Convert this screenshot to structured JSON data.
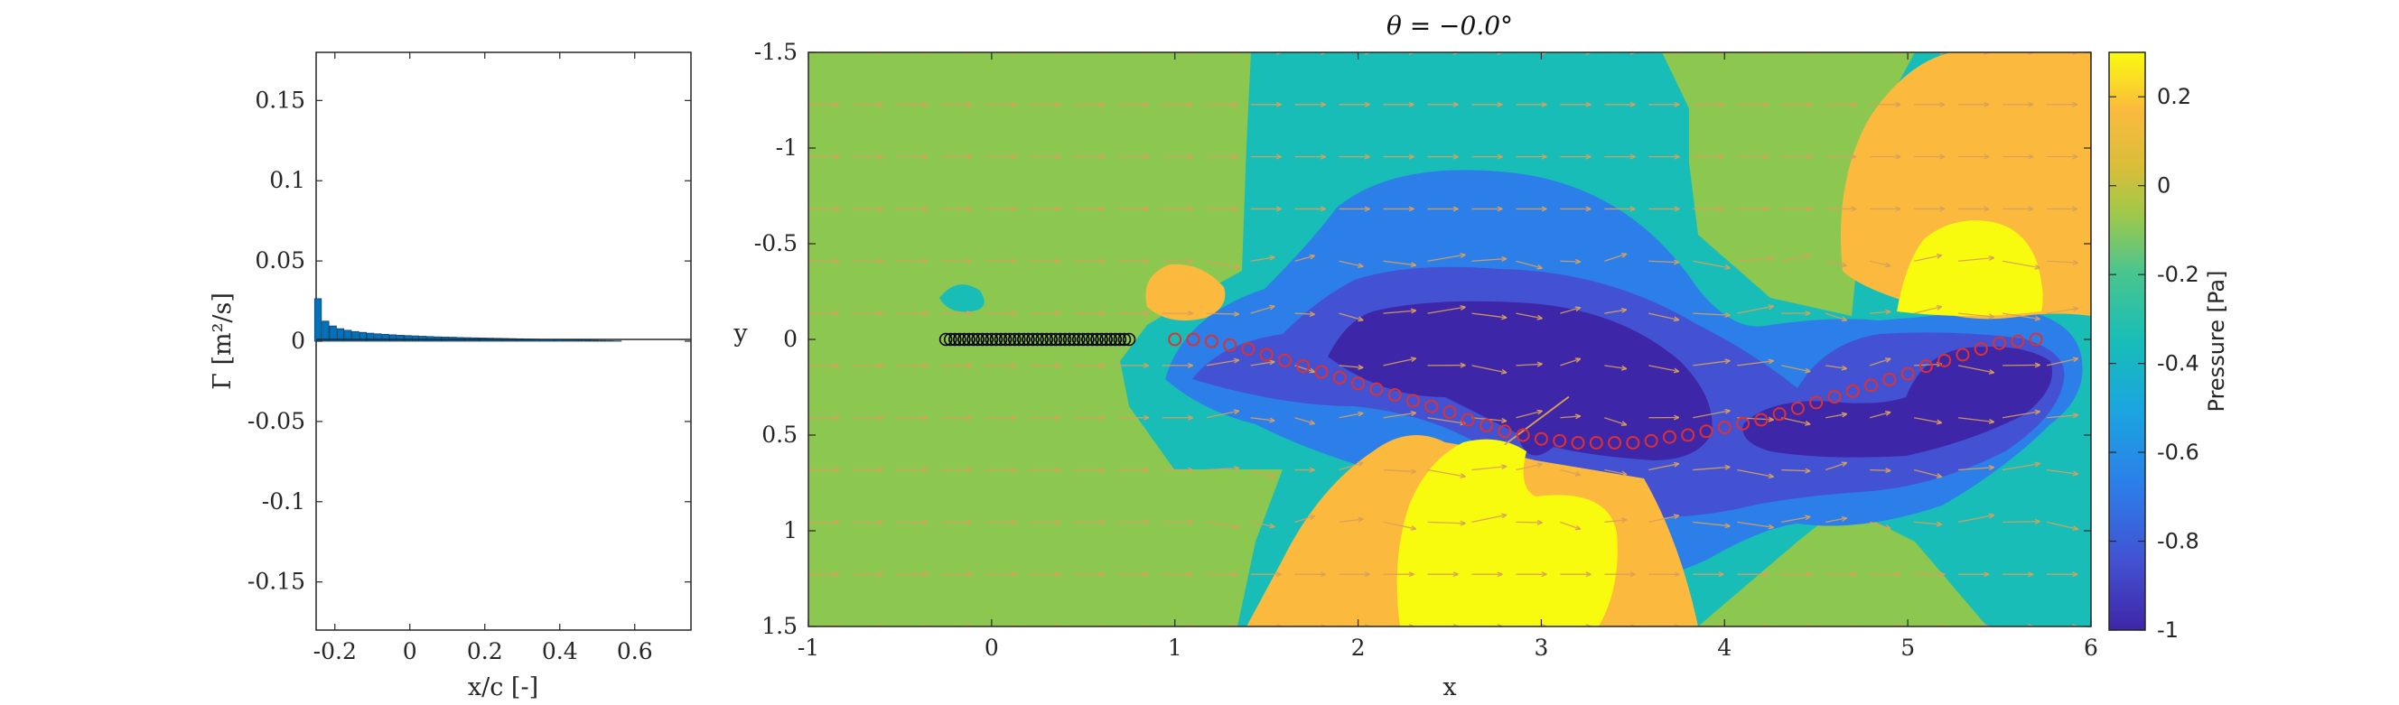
{
  "chart_data": [
    {
      "type": "bar",
      "xlabel": "x/c [-]",
      "ylabel": "Γ [m²/s]",
      "xlim": [
        -0.25,
        0.75
      ],
      "ylim": [
        -0.18,
        0.18
      ],
      "xticks": [
        "-0.2",
        "0",
        "0.2",
        "0.4",
        "0.6"
      ],
      "yticks": [
        "0.15",
        "0.1",
        "0.05",
        "0",
        "-0.05",
        "-0.1",
        "-0.15"
      ],
      "x": [
        -0.245,
        -0.225,
        -0.205,
        -0.185,
        -0.165,
        -0.145,
        -0.125,
        -0.105,
        -0.085,
        -0.065,
        -0.045,
        -0.025,
        -0.005,
        0.015,
        0.035,
        0.055,
        0.075,
        0.095,
        0.115,
        0.135,
        0.155,
        0.175,
        0.195,
        0.215,
        0.235,
        0.255,
        0.275,
        0.295,
        0.315,
        0.335,
        0.355,
        0.375,
        0.395,
        0.415,
        0.435,
        0.455,
        0.475,
        0.495,
        0.515,
        0.535,
        0.555
      ],
      "values": [
        0.0265,
        0.0125,
        0.0095,
        0.0078,
        0.0068,
        0.006,
        0.0055,
        0.005,
        0.0046,
        0.0043,
        0.004,
        0.0037,
        0.0035,
        0.0033,
        0.0031,
        0.0029,
        0.0027,
        0.0026,
        0.0025,
        0.0023,
        0.0022,
        0.0021,
        0.002,
        0.0019,
        0.0018,
        0.0017,
        0.0016,
        0.0015,
        0.0014,
        0.0013,
        0.0012,
        0.0011,
        0.001,
        0.0009,
        0.0008,
        0.0007,
        0.0006,
        0.0005,
        0.0004,
        0.0003,
        0.0002
      ],
      "bar_color": "#0072BD"
    },
    {
      "type": "heatmap",
      "title": "θ = −0.0°",
      "xlabel": "x",
      "ylabel": "y",
      "xlim": [
        -1,
        6
      ],
      "ylim": [
        1.5,
        -1.5
      ],
      "xticks": [
        "-1",
        "0",
        "1",
        "2",
        "3",
        "4",
        "5",
        "6"
      ],
      "yticks": [
        "-1.5",
        "-1",
        "-0.5",
        "0",
        "0.5",
        "1",
        "1.5"
      ],
      "colorbar_label": "Pressure [Pa]",
      "colorbar_range": [
        -1,
        0.3
      ],
      "colorbar_ticks": [
        "0.2",
        "0",
        "-0.2",
        "-0.4",
        "-0.6",
        "-0.8",
        "-1"
      ],
      "plate_points": {
        "x_start": -0.25,
        "x_end": 0.75,
        "y": 0,
        "count": 41,
        "color": "#000000"
      },
      "wake_points": {
        "color": "#e03030",
        "x": [
          1.0,
          1.1,
          1.2,
          1.3,
          1.4,
          1.5,
          1.6,
          1.7,
          1.8,
          1.9,
          2.0,
          2.1,
          2.2,
          2.3,
          2.4,
          2.5,
          2.6,
          2.7,
          2.8,
          2.9,
          3.0,
          3.1,
          3.2,
          3.3,
          3.4,
          3.5,
          3.6,
          3.7,
          3.8,
          3.9,
          4.0,
          4.1,
          4.2,
          4.3,
          4.4,
          4.5,
          4.6,
          4.7,
          4.8,
          4.9,
          5.0,
          5.1,
          5.2,
          5.3,
          5.4,
          5.5,
          5.6,
          5.7
        ],
        "y": [
          0.0,
          0.0,
          0.01,
          0.03,
          0.05,
          0.08,
          0.11,
          0.14,
          0.17,
          0.2,
          0.23,
          0.26,
          0.29,
          0.32,
          0.35,
          0.38,
          0.42,
          0.45,
          0.48,
          0.5,
          0.52,
          0.53,
          0.54,
          0.54,
          0.54,
          0.54,
          0.53,
          0.51,
          0.5,
          0.48,
          0.46,
          0.44,
          0.42,
          0.39,
          0.36,
          0.33,
          0.3,
          0.27,
          0.24,
          0.21,
          0.18,
          0.14,
          0.11,
          0.08,
          0.05,
          0.02,
          0.01,
          0.0
        ]
      }
    }
  ],
  "palette": {
    "axis": "#262626",
    "arrow": "#d9a05a",
    "parula": [
      "#3e26a8",
      "#4352d2",
      "#2c7ee9",
      "#1aa5e0",
      "#18bdb8",
      "#4ac58d",
      "#8cc84f",
      "#fbba3d",
      "#f7e52a",
      "#f9fb0e"
    ]
  }
}
